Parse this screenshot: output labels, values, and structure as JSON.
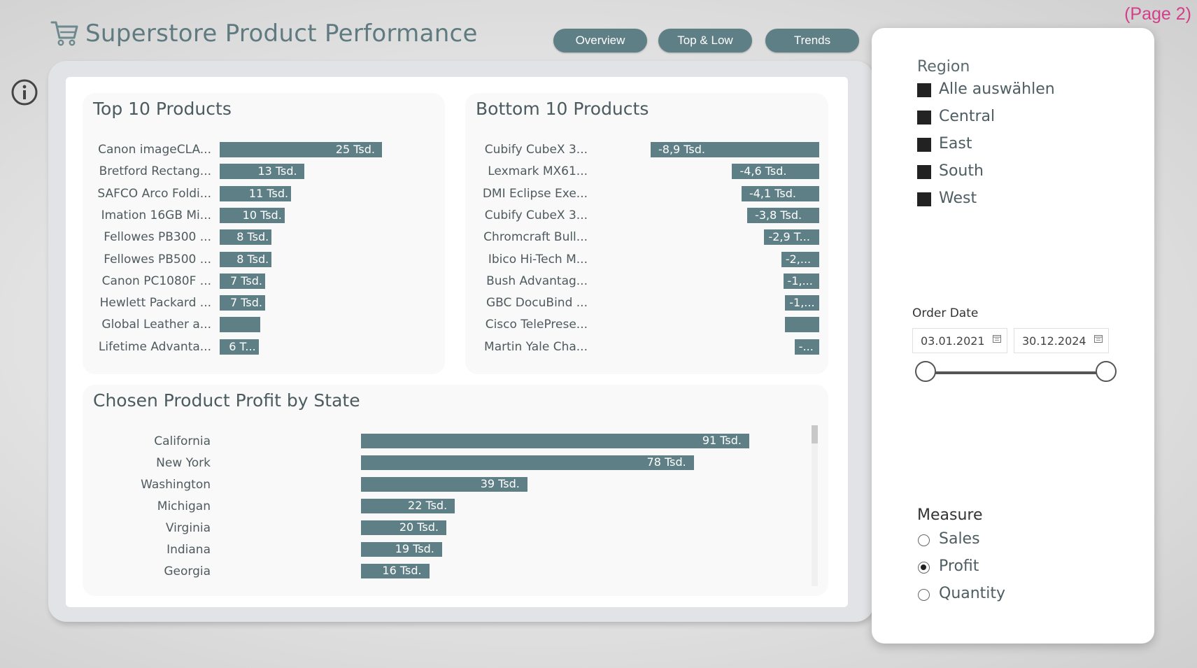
{
  "header": {
    "title": "Superstore Product Performance",
    "page_note": "(Page 2)",
    "nav": [
      {
        "label": "Overview"
      },
      {
        "label": "Top & Low"
      },
      {
        "label": "Trends"
      }
    ]
  },
  "colors": {
    "accent": "#5f7f86",
    "page_note": "#d43f8a"
  },
  "icons": {
    "cart": "shopping-cart-icon",
    "info": "info-icon",
    "calendar": "calendar-icon"
  },
  "top10": {
    "title": "Top 10 Products",
    "products": [
      {
        "name": "Canon imageCLA...",
        "value": 25,
        "label": "25 Tsd."
      },
      {
        "name": "Bretford Rectang...",
        "value": 13,
        "label": "13 Tsd."
      },
      {
        "name": "SAFCO Arco Foldi...",
        "value": 11,
        "label": "11 Tsd."
      },
      {
        "name": "Imation 16GB Mi...",
        "value": 10,
        "label": "10 Tsd."
      },
      {
        "name": "Fellowes PB300 ...",
        "value": 8,
        "label": "8 Tsd."
      },
      {
        "name": "Fellowes PB500 ...",
        "value": 8,
        "label": "8 Tsd."
      },
      {
        "name": "Canon PC1080F ...",
        "value": 7,
        "label": "7 Tsd."
      },
      {
        "name": "Hewlett Packard ...",
        "value": 7,
        "label": "7 Tsd."
      },
      {
        "name": "Global Leather a...",
        "value": 6.3,
        "label": ""
      },
      {
        "name": "Lifetime Advanta...",
        "value": 6,
        "label": "6 T..."
      }
    ]
  },
  "bottom10": {
    "title": "Bottom 10 Products",
    "products": [
      {
        "name": "Cubify CubeX 3...",
        "value": -8.9,
        "label": "-8,9 Tsd."
      },
      {
        "name": "Lexmark MX61...",
        "value": -4.6,
        "label": "-4,6 Tsd."
      },
      {
        "name": "DMI Eclipse Exe...",
        "value": -4.1,
        "label": "-4,1 Tsd."
      },
      {
        "name": "Cubify CubeX 3...",
        "value": -3.8,
        "label": "-3,8 Tsd."
      },
      {
        "name": "Chromcraft Bull...",
        "value": -2.9,
        "label": "-2,9 T..."
      },
      {
        "name": "Ibico Hi-Tech M...",
        "value": -2.0,
        "label": "-2,..."
      },
      {
        "name": "Bush Advantag...",
        "value": -1.9,
        "label": "-1,..."
      },
      {
        "name": "GBC DocuBind ...",
        "value": -1.8,
        "label": "-1,..."
      },
      {
        "name": "Cisco TelePrese...",
        "value": -1.8,
        "label": ""
      },
      {
        "name": "Martin Yale Cha...",
        "value": -1.3,
        "label": "-..."
      }
    ]
  },
  "states": {
    "title": "Chosen Product Profit by State",
    "rows": [
      {
        "name": "California",
        "value": 91,
        "label": "91 Tsd."
      },
      {
        "name": "New York",
        "value": 78,
        "label": "78 Tsd."
      },
      {
        "name": "Washington",
        "value": 39,
        "label": "39 Tsd."
      },
      {
        "name": "Michigan",
        "value": 22,
        "label": "22 Tsd."
      },
      {
        "name": "Virginia",
        "value": 20,
        "label": "20 Tsd."
      },
      {
        "name": "Indiana",
        "value": 19,
        "label": "19 Tsd."
      },
      {
        "name": "Georgia",
        "value": 16,
        "label": "16 Tsd."
      }
    ]
  },
  "filters": {
    "region_title": "Region",
    "regions": [
      "Alle auswählen",
      "Central",
      "East",
      "South",
      "West"
    ],
    "date_title": "Order Date",
    "date_from": "03.01.2021",
    "date_to": "30.12.2024",
    "measure_title": "Measure",
    "measures": [
      {
        "label": "Sales",
        "selected": false
      },
      {
        "label": "Profit",
        "selected": true
      },
      {
        "label": "Quantity",
        "selected": false
      }
    ]
  },
  "chart_data": [
    {
      "type": "bar",
      "title": "Top 10 Products",
      "categories": [
        "Canon imageCLA...",
        "Bretford Rectang...",
        "SAFCO Arco Foldi...",
        "Imation 16GB Mi...",
        "Fellowes PB300 ...",
        "Fellowes PB500 ...",
        "Canon PC1080F ...",
        "Hewlett Packard ...",
        "Global Leather a...",
        "Lifetime Advanta..."
      ],
      "values": [
        25,
        13,
        11,
        10,
        8,
        8,
        7,
        7,
        6.3,
        6
      ],
      "orientation": "horizontal"
    },
    {
      "type": "bar",
      "title": "Bottom 10 Products",
      "categories": [
        "Cubify CubeX 3...",
        "Lexmark MX61...",
        "DMI Eclipse Exe...",
        "Cubify CubeX 3...",
        "Chromcraft Bull...",
        "Ibico Hi-Tech M...",
        "Bush Advantag...",
        "GBC DocuBind ...",
        "Cisco TelePrese...",
        "Martin Yale Cha..."
      ],
      "values": [
        -8.9,
        -4.6,
        -4.1,
        -3.8,
        -2.9,
        -2.0,
        -1.9,
        -1.8,
        -1.8,
        -1.3
      ],
      "orientation": "horizontal"
    },
    {
      "type": "bar",
      "title": "Chosen Product Profit by State",
      "categories": [
        "California",
        "New York",
        "Washington",
        "Michigan",
        "Virginia",
        "Indiana",
        "Georgia"
      ],
      "values": [
        91,
        78,
        39,
        22,
        20,
        19,
        16
      ],
      "orientation": "horizontal"
    }
  ]
}
